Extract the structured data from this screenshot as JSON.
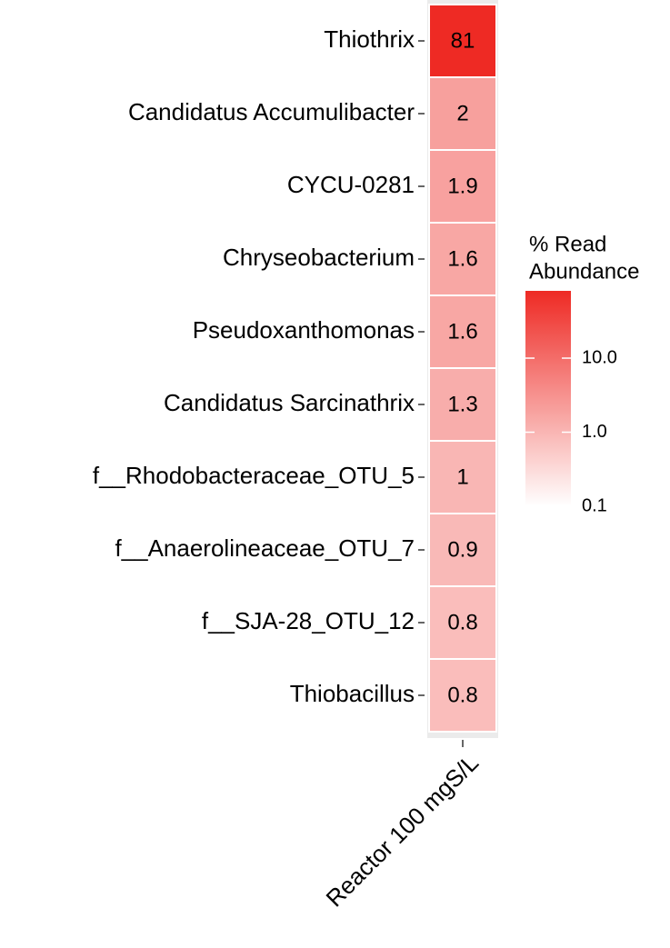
{
  "chart_data": {
    "type": "heatmap",
    "categories": [
      "Thiothrix",
      "Candidatus Accumulibacter",
      "CYCU-0281",
      "Chryseobacterium",
      "Pseudoxanthomonas",
      "Candidatus Sarcinathrix",
      "f__Rhodobacteraceae_OTU_5",
      "f__Anaerolineaceae_OTU_7",
      "f__SJA-28_OTU_12",
      "Thiobacillus"
    ],
    "columns": [
      "Reactor 100 mgS/L"
    ],
    "values": [
      81,
      2,
      1.9,
      1.6,
      1.6,
      1.3,
      1,
      0.9,
      0.8,
      0.8
    ],
    "legend_title": [
      "% Read",
      "Abundance"
    ],
    "color_scale": "log",
    "color_low": "#ffffff",
    "color_high": "#ee2a24",
    "clim": [
      0.1,
      81
    ],
    "cticks": [
      0.1,
      {
        "value": 1,
        "label": "1.0"
      },
      {
        "value": 10,
        "label": "10.0"
      }
    ]
  }
}
